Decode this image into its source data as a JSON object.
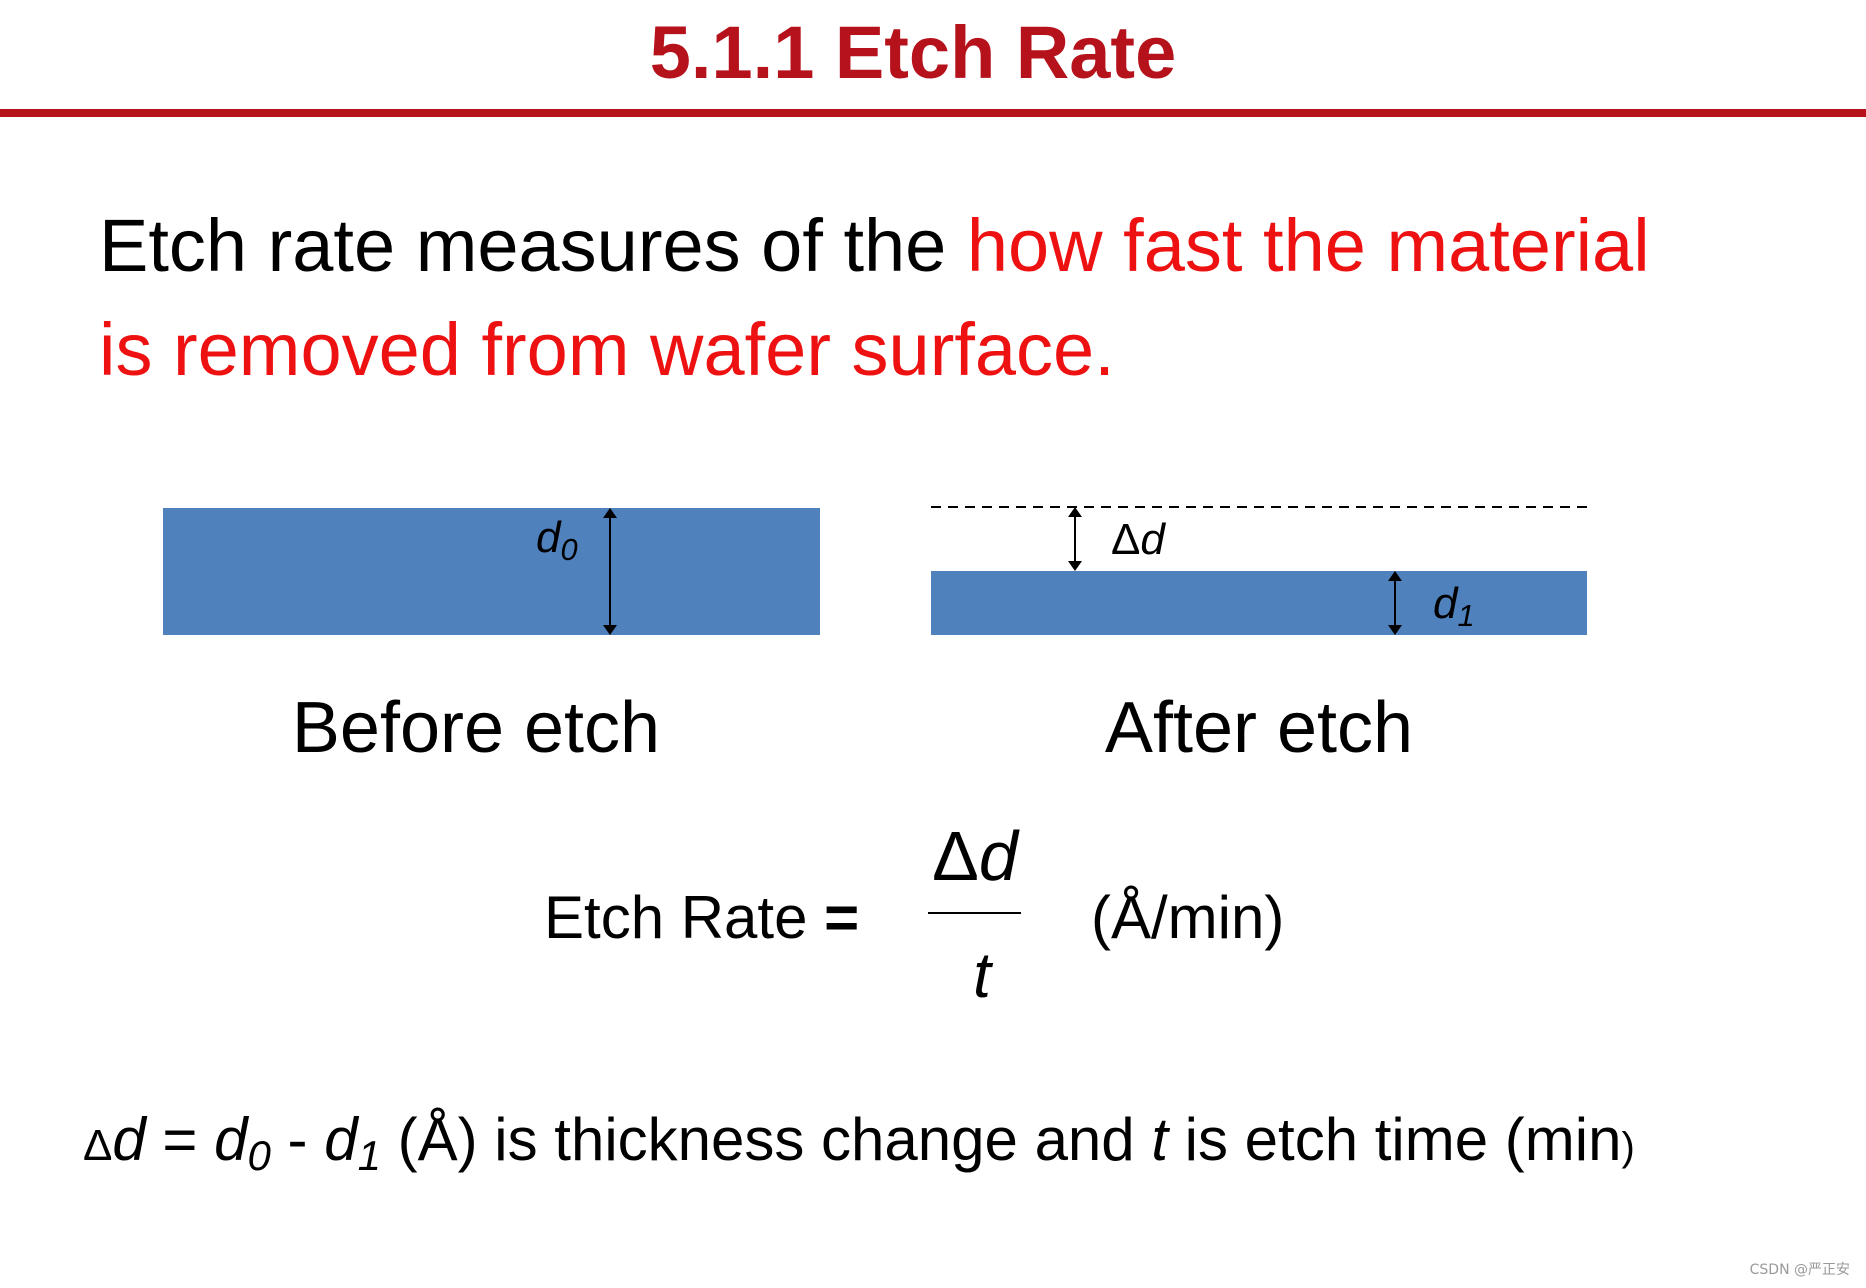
{
  "header": {
    "title": "5.1.1 Etch Rate"
  },
  "definition": {
    "lines": [
      [
        "Etch rate measures of the ",
        "how fast the material"
      ],
      [
        "is removed from wafer surface."
      ]
    ]
  },
  "diagram": {
    "before": {
      "label": "Before etch",
      "thickness": [
        "d",
        "0"
      ]
    },
    "after": {
      "label": "After etch",
      "removed": [
        "Δ",
        "d"
      ],
      "thickness": [
        "d",
        "1"
      ]
    }
  },
  "formula": {
    "lhs": "Etch Rate ",
    "equals": "=",
    "numerator": [
      "Δ",
      "d"
    ],
    "denominator": "t",
    "unit": "(Å/min)"
  },
  "note": {
    "segments": [
      "Δ",
      "d",
      " = ",
      "d",
      "0",
      " - ",
      "d",
      "1",
      " (Å) is thickness change and ",
      "t",
      " is etch time (min",
      ")"
    ]
  },
  "watermark": "CSDN @严正安"
}
